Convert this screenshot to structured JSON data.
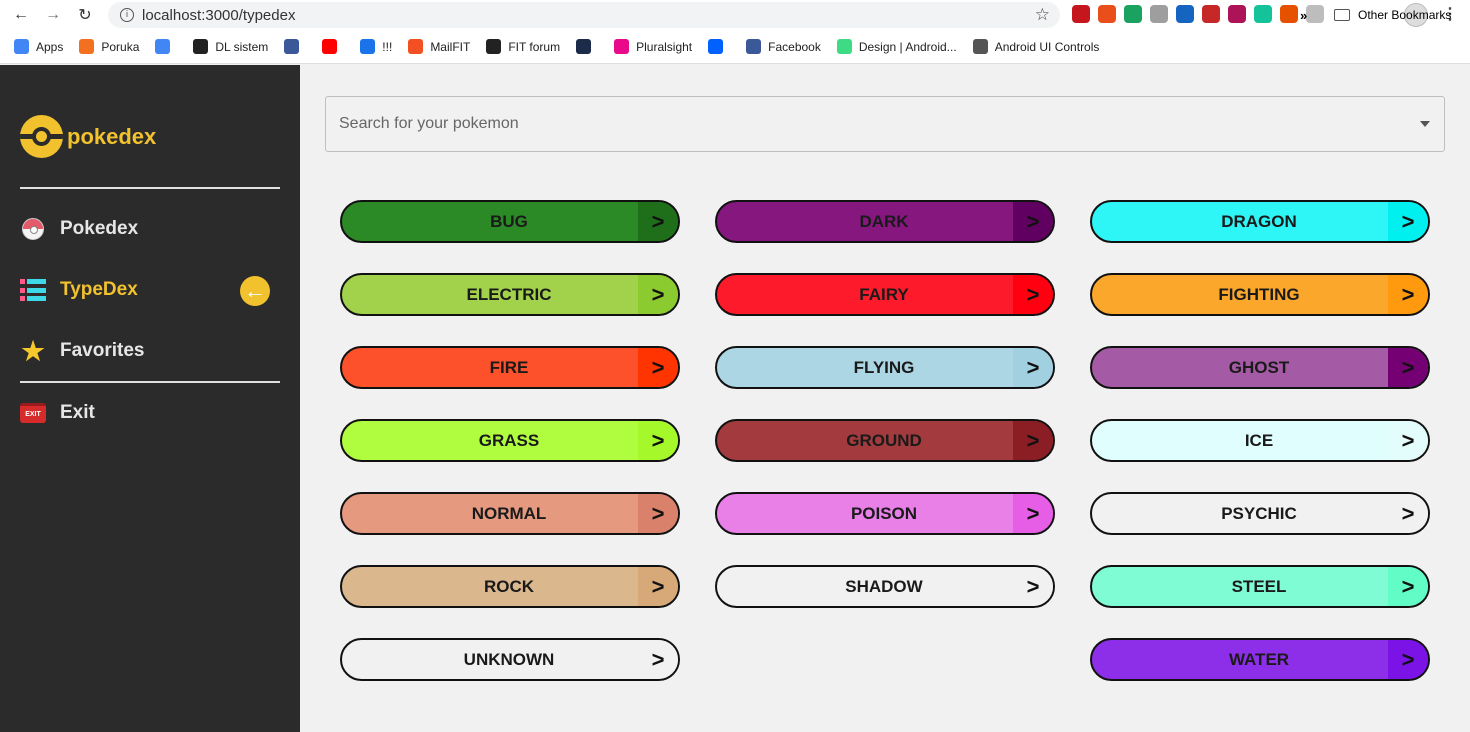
{
  "browser": {
    "url": "localhost:3000/typedex",
    "bookmarks": [
      {
        "label": "Apps",
        "color": "#4285f4",
        "icon": "apps-grid-icon"
      },
      {
        "label": "Poruka",
        "color": "#f37021",
        "icon": "poruka-icon"
      },
      {
        "label": "",
        "color": "#4285f4",
        "icon": "google-icon"
      },
      {
        "label": "DL sistem",
        "color": "#222222",
        "icon": "globe-icon"
      },
      {
        "label": "",
        "color": "#3b5998",
        "icon": "facebook-icon"
      },
      {
        "label": "",
        "color": "#ff0000",
        "icon": "youtube-icon"
      },
      {
        "label": "!!!",
        "color": "#1a73e8",
        "icon": "signal-icon"
      },
      {
        "label": "MailFIT",
        "color": "#f25022",
        "icon": "microsoft-icon"
      },
      {
        "label": "FIT forum",
        "color": "#222222",
        "icon": "globe-icon"
      },
      {
        "label": "",
        "color": "#1c2b4a",
        "icon": "cursor-icon"
      },
      {
        "label": "Pluralsight",
        "color": "#e80a89",
        "icon": "pluralsight-icon"
      },
      {
        "label": "",
        "color": "#0061fe",
        "icon": "dropbox-icon"
      },
      {
        "label": "Facebook",
        "color": "#3b5998",
        "icon": "facebook-icon"
      },
      {
        "label": "Design | Android...",
        "color": "#3ddc84",
        "icon": "android-icon"
      },
      {
        "label": "Android UI Controls",
        "color": "#555555",
        "icon": "diamond-icon"
      }
    ],
    "more": "»",
    "other_bookmarks": "Other Bookmarks",
    "extensions": [
      "#c4161c",
      "#e94e1b",
      "#1aa260",
      "#9e9e9e",
      "#1565c0",
      "#c62828",
      "#ad1457",
      "#15c39a",
      "#e65100",
      "#bdbdbd"
    ]
  },
  "sidebar": {
    "logo_text": "pokedex",
    "items": [
      {
        "label": "Pokedex",
        "icon": "pokeball-icon"
      },
      {
        "label": "TypeDex",
        "icon": "list-icon"
      },
      {
        "label": "Favorites",
        "icon": "star-icon"
      },
      {
        "label": "Exit",
        "icon": "exit-sign-icon",
        "icon_text": "EXIT"
      }
    ],
    "back_icon": "←"
  },
  "search": {
    "placeholder": "Search for your pokemon"
  },
  "types": [
    {
      "label": "BUG",
      "color": "#2c8a26",
      "arrow_color": "#1f6e1a"
    },
    {
      "label": "DARK",
      "color": "#85177f",
      "arrow_color": "#600060"
    },
    {
      "label": "DRAGON",
      "color": "#2ff6f6",
      "arrow_color": "#00f0f0"
    },
    {
      "label": "ELECTRIC",
      "color": "#a2d24c",
      "arrow_color": "#8ccb2f"
    },
    {
      "label": "FAIRY",
      "color": "#fc1a2b",
      "arrow_color": "#ff0010"
    },
    {
      "label": "FIGHTING",
      "color": "#fba72b",
      "arrow_color": "#ff990d"
    },
    {
      "label": "FIRE",
      "color": "#fc512b",
      "arrow_color": "#ff3400"
    },
    {
      "label": "FLYING",
      "color": "#acd6e4",
      "arrow_color": "#a1d0e0"
    },
    {
      "label": "GHOST",
      "color": "#a55aa5",
      "arrow_color": "#740074"
    },
    {
      "label": "GRASS",
      "color": "#b0fc3f",
      "arrow_color": "#a5f92a"
    },
    {
      "label": "GROUND",
      "color": "#a33a3e",
      "arrow_color": "#8a1e24"
    },
    {
      "label": "ICE",
      "color": "#e0fefe",
      "arrow_color": "#e3fdfd"
    },
    {
      "label": "NORMAL",
      "color": "#e59a80",
      "arrow_color": "#d9816a"
    },
    {
      "label": "POISON",
      "color": "#e880e8",
      "arrow_color": "#e65ee6"
    },
    {
      "label": "PSYCHIC",
      "color": "#f1f1f1",
      "arrow_color": "#f1f1f1"
    },
    {
      "label": "ROCK",
      "color": "#dbb78e",
      "arrow_color": "#d7a878"
    },
    {
      "label": "SHADOW",
      "color": "#f1f1f1",
      "arrow_color": "#f1f1f1"
    },
    {
      "label": "STEEL",
      "color": "#80fcd4",
      "arrow_color": "#62fdc7"
    },
    {
      "label": "UNKNOWN",
      "color": "#f1f1f1",
      "arrow_color": "#f1f1f1"
    },
    {
      "label": "WATER",
      "color": "#8d2ee8",
      "arrow_color": "#7b12e6"
    }
  ],
  "arrow_glyph": ">"
}
